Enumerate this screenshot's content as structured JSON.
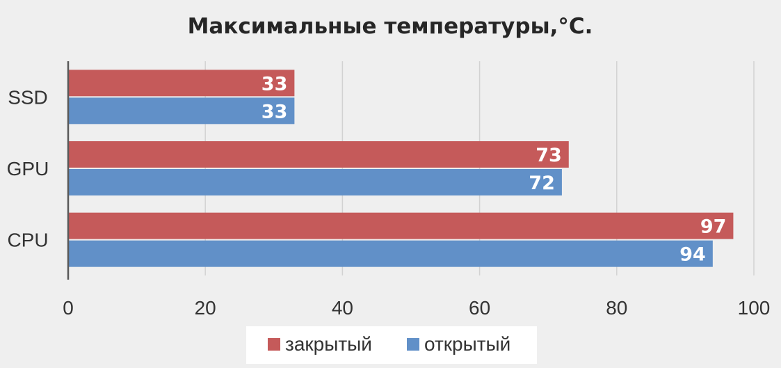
{
  "chart_data": {
    "type": "bar",
    "orientation": "horizontal",
    "title": "Максимальные температуры,°C.",
    "categories": [
      "SSD",
      "GPU",
      "CPU"
    ],
    "series": [
      {
        "name": "закрытый",
        "color": "#c55a5a",
        "values": [
          33,
          73,
          97
        ]
      },
      {
        "name": "открытый",
        "color": "#6190c8",
        "values": [
          33,
          72,
          94
        ]
      }
    ],
    "xlim": [
      0,
      100
    ],
    "xticks": [
      0,
      20,
      40,
      60,
      80,
      100
    ],
    "grid": true,
    "data_labels": true,
    "legend_position": "bottom"
  }
}
